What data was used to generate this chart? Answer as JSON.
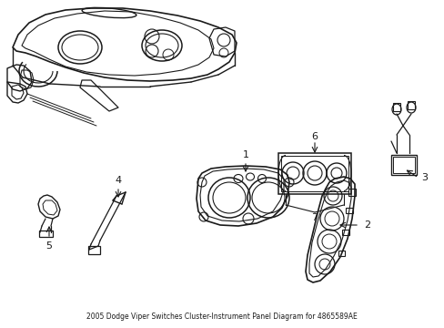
{
  "title": "2005 Dodge Viper Switches Cluster-Instrument Panel Diagram for 4865589AE",
  "background_color": "#ffffff",
  "line_color": "#1a1a1a",
  "fig_width": 4.89,
  "fig_height": 3.6,
  "dpi": 100
}
